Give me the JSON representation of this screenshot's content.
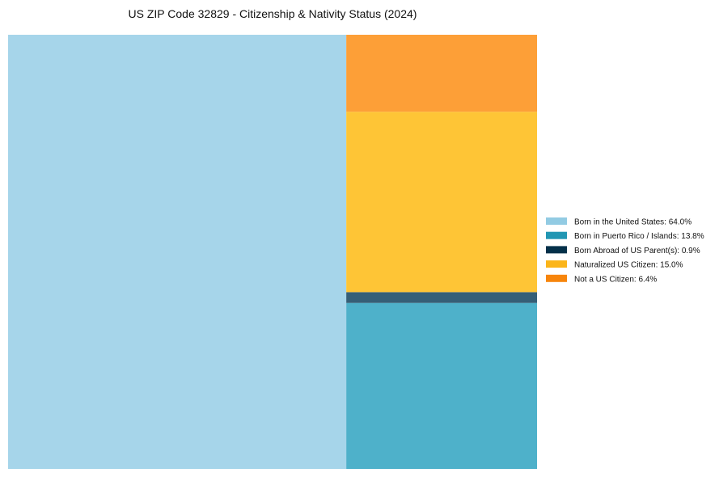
{
  "chart_data": {
    "type": "treemap",
    "title": "US ZIP Code 32829 - Citizenship & Nativity Status (2024)",
    "unit": "%",
    "series": [
      {
        "name": "Born in the United States",
        "value": 64.0,
        "legend_label": "Born in the United States: 64.0%",
        "legend_color": "#92cbe3",
        "tile_color": "#a6d5ea"
      },
      {
        "name": "Born in Puerto Rico / Islands",
        "value": 13.8,
        "legend_label": "Born in Puerto Rico / Islands: 13.8%",
        "legend_color": "#2196b3",
        "tile_color": "#4eb1ca"
      },
      {
        "name": "Born Abroad of US Parent(s)",
        "value": 0.9,
        "legend_label": "Born Abroad of US Parent(s): 0.9%",
        "legend_color": "#043049",
        "tile_color": "#355f77"
      },
      {
        "name": "Naturalized US Citizen",
        "value": 15.0,
        "legend_label": "Naturalized US Citizen: 15.0%",
        "legend_color": "#fbb51a",
        "tile_color": "#fec536"
      },
      {
        "name": "Not a US Citizen",
        "value": 6.4,
        "legend_label": "Not a US Citizen: 6.4%",
        "legend_color": "#f7850c",
        "tile_color": "#fd9f37"
      }
    ],
    "legend": {
      "position": "right"
    }
  }
}
